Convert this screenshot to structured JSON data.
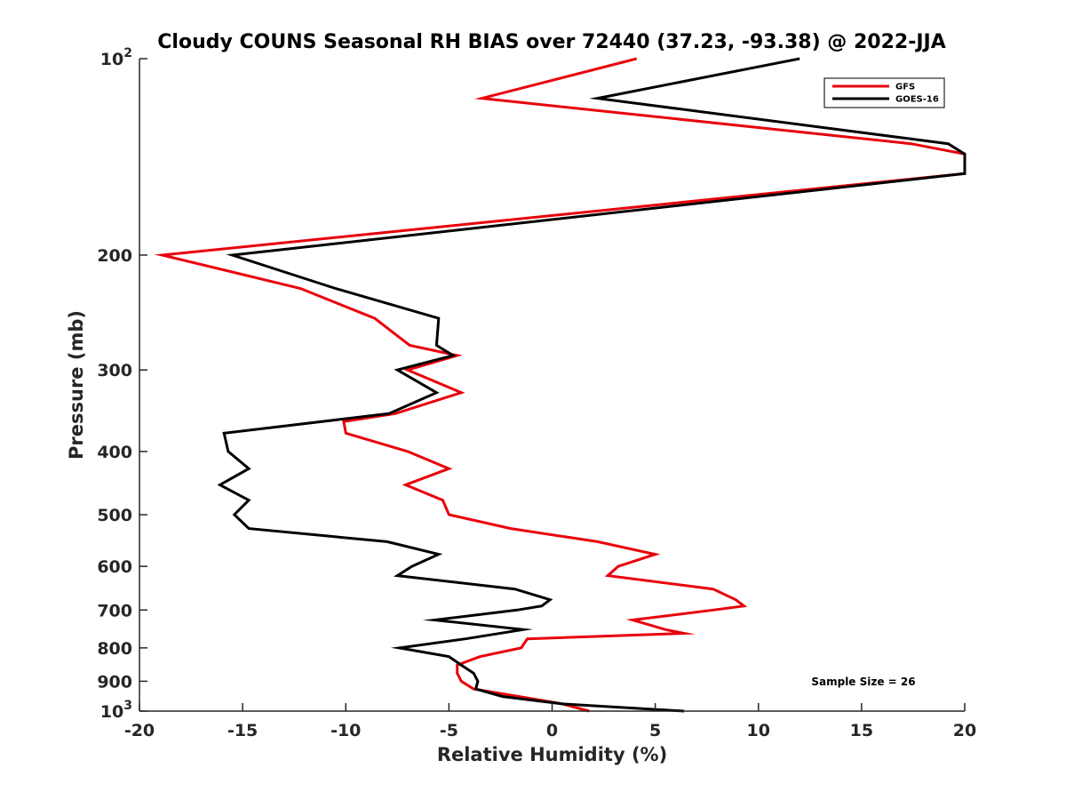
{
  "chart_data": {
    "type": "line",
    "title": "Cloudy COUNS Seasonal RH BIAS over 72440 (37.23, -93.38) @ 2022-JJA",
    "xlabel": "Relative Humidity (%)",
    "ylabel": "Pressure (mb)",
    "xlim": [
      -20,
      20
    ],
    "ylim": [
      100,
      1000
    ],
    "yscale": "log",
    "y_reversed": true,
    "grid": false,
    "legend_position": "top-right",
    "x_ticks": [
      -20,
      -15,
      -10,
      -5,
      0,
      5,
      10,
      15,
      20
    ],
    "x_tick_labels": [
      "-20",
      "-15",
      "-10",
      "-5",
      "0",
      "5",
      "10",
      "15",
      "20"
    ],
    "y_ticks": [
      100,
      200,
      300,
      400,
      500,
      600,
      700,
      800,
      900,
      1000
    ],
    "y_tick_labels": [
      {
        "base": "10",
        "exp": "2"
      },
      {
        "base": "200",
        "exp": ""
      },
      {
        "base": "300",
        "exp": ""
      },
      {
        "base": "400",
        "exp": ""
      },
      {
        "base": "500",
        "exp": ""
      },
      {
        "base": "600",
        "exp": ""
      },
      {
        "base": "700",
        "exp": ""
      },
      {
        "base": "800",
        "exp": ""
      },
      {
        "base": "900",
        "exp": ""
      },
      {
        "base": "10",
        "exp": "3"
      }
    ],
    "annotation": "Sample Size = 26",
    "series": [
      {
        "name": "GFS",
        "color": "#e8000b",
        "points": [
          {
            "p": 100,
            "rh": 4.1
          },
          {
            "p": 115,
            "rh": -3.4
          },
          {
            "p": 135,
            "rh": 17.4
          },
          {
            "p": 140,
            "rh": 20.0
          },
          {
            "p": 150,
            "rh": 20.0
          },
          {
            "p": 200,
            "rh": -18.9
          },
          {
            "p": 225,
            "rh": -12.2
          },
          {
            "p": 250,
            "rh": -8.6
          },
          {
            "p": 275,
            "rh": -6.9
          },
          {
            "p": 285,
            "rh": -4.6
          },
          {
            "p": 300,
            "rh": -7.0
          },
          {
            "p": 325,
            "rh": -4.4
          },
          {
            "p": 350,
            "rh": -7.6
          },
          {
            "p": 360,
            "rh": -10.1
          },
          {
            "p": 375,
            "rh": -10.0
          },
          {
            "p": 400,
            "rh": -7.0
          },
          {
            "p": 425,
            "rh": -5.0
          },
          {
            "p": 450,
            "rh": -7.1
          },
          {
            "p": 475,
            "rh": -5.3
          },
          {
            "p": 500,
            "rh": -5.0
          },
          {
            "p": 525,
            "rh": -2.0
          },
          {
            "p": 550,
            "rh": 2.2
          },
          {
            "p": 575,
            "rh": 5.0
          },
          {
            "p": 600,
            "rh": 3.2
          },
          {
            "p": 620,
            "rh": 2.7
          },
          {
            "p": 650,
            "rh": 7.8
          },
          {
            "p": 675,
            "rh": 8.9
          },
          {
            "p": 690,
            "rh": 9.3
          },
          {
            "p": 700,
            "rh": 7.8
          },
          {
            "p": 725,
            "rh": 3.9
          },
          {
            "p": 750,
            "rh": 5.5
          },
          {
            "p": 760,
            "rh": 6.4
          },
          {
            "p": 775,
            "rh": -1.2
          },
          {
            "p": 800,
            "rh": -1.5
          },
          {
            "p": 825,
            "rh": -3.5
          },
          {
            "p": 850,
            "rh": -4.6
          },
          {
            "p": 875,
            "rh": -4.6
          },
          {
            "p": 900,
            "rh": -4.4
          },
          {
            "p": 925,
            "rh": -3.8
          },
          {
            "p": 950,
            "rh": -1.6
          },
          {
            "p": 975,
            "rh": 0.5
          },
          {
            "p": 1000,
            "rh": 1.8
          }
        ]
      },
      {
        "name": "GOES-16",
        "color": "#000000",
        "points": [
          {
            "p": 100,
            "rh": 12.0
          },
          {
            "p": 115,
            "rh": 2.2
          },
          {
            "p": 135,
            "rh": 19.2
          },
          {
            "p": 140,
            "rh": 20.0
          },
          {
            "p": 150,
            "rh": 20.0
          },
          {
            "p": 200,
            "rh": -15.5
          },
          {
            "p": 225,
            "rh": -10.5
          },
          {
            "p": 250,
            "rh": -5.5
          },
          {
            "p": 275,
            "rh": -5.6
          },
          {
            "p": 285,
            "rh": -4.8
          },
          {
            "p": 300,
            "rh": -7.5
          },
          {
            "p": 325,
            "rh": -5.6
          },
          {
            "p": 350,
            "rh": -7.9
          },
          {
            "p": 375,
            "rh": -15.9
          },
          {
            "p": 400,
            "rh": -15.7
          },
          {
            "p": 425,
            "rh": -14.7
          },
          {
            "p": 450,
            "rh": -16.1
          },
          {
            "p": 475,
            "rh": -14.7
          },
          {
            "p": 500,
            "rh": -15.4
          },
          {
            "p": 525,
            "rh": -14.7
          },
          {
            "p": 550,
            "rh": -8.0
          },
          {
            "p": 575,
            "rh": -5.5
          },
          {
            "p": 600,
            "rh": -6.8
          },
          {
            "p": 620,
            "rh": -7.5
          },
          {
            "p": 650,
            "rh": -1.8
          },
          {
            "p": 675,
            "rh": -0.1
          },
          {
            "p": 690,
            "rh": -0.5
          },
          {
            "p": 700,
            "rh": -1.7
          },
          {
            "p": 725,
            "rh": -5.7
          },
          {
            "p": 750,
            "rh": -1.4
          },
          {
            "p": 775,
            "rh": -4.2
          },
          {
            "p": 800,
            "rh": -7.4
          },
          {
            "p": 825,
            "rh": -5.0
          },
          {
            "p": 850,
            "rh": -4.4
          },
          {
            "p": 875,
            "rh": -3.8
          },
          {
            "p": 900,
            "rh": -3.6
          },
          {
            "p": 925,
            "rh": -3.7
          },
          {
            "p": 950,
            "rh": -2.4
          },
          {
            "p": 975,
            "rh": 0.5
          },
          {
            "p": 1000,
            "rh": 6.4
          }
        ]
      }
    ]
  }
}
